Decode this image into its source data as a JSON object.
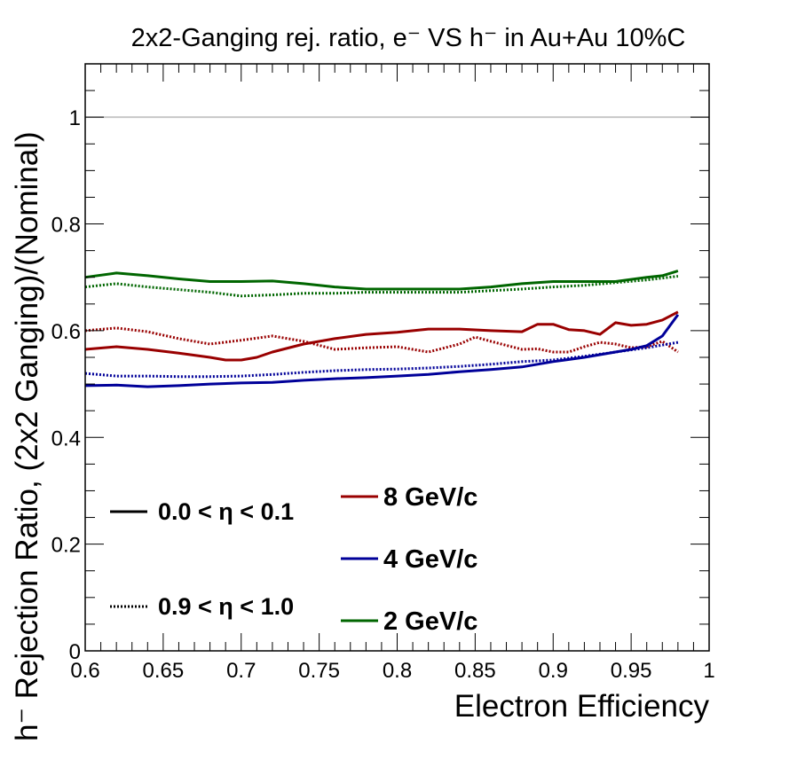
{
  "chart_data": {
    "type": "line",
    "title": "2x2-Ganging rej. ratio, e⁻ VS h⁻ in Au+Au 10%C",
    "xlabel": "Electron Efficiency",
    "ylabel": "h⁻ Rejection Ratio, (2x2 Ganging)/(Nominal)",
    "xlim": [
      0.6,
      1.0
    ],
    "ylim": [
      0,
      1.1
    ],
    "xticks": [
      "0.6",
      "0.65",
      "0.7",
      "0.75",
      "0.8",
      "0.85",
      "0.9",
      "0.95",
      "1"
    ],
    "yticks": [
      "0",
      "0.2",
      "0.4",
      "0.6",
      "0.8",
      "1"
    ],
    "reference_line": {
      "y": 1.0,
      "color": "#c8c8c8"
    },
    "legend_styles": [
      {
        "label": "0.0 < η < 0.1",
        "style": "solid"
      },
      {
        "label": "0.9 < η < 1.0",
        "style": "dotted"
      }
    ],
    "legend_momenta": [
      {
        "label": "8 GeV/c",
        "color": "#990000"
      },
      {
        "label": "4 GeV/c",
        "color": "#000099"
      },
      {
        "label": "2 GeV/c",
        "color": "#006600"
      }
    ],
    "series": [
      {
        "momentum": "8 GeV/c",
        "eta": "0.0 < η < 0.1",
        "color": "#990000",
        "style": "solid",
        "x": [
          0.6,
          0.62,
          0.64,
          0.66,
          0.68,
          0.69,
          0.7,
          0.71,
          0.72,
          0.74,
          0.76,
          0.78,
          0.8,
          0.82,
          0.84,
          0.86,
          0.88,
          0.89,
          0.9,
          0.91,
          0.92,
          0.93,
          0.94,
          0.95,
          0.96,
          0.97,
          0.98
        ],
        "y": [
          0.565,
          0.57,
          0.565,
          0.558,
          0.55,
          0.545,
          0.545,
          0.55,
          0.56,
          0.575,
          0.585,
          0.593,
          0.597,
          0.603,
          0.603,
          0.6,
          0.598,
          0.612,
          0.612,
          0.602,
          0.6,
          0.593,
          0.615,
          0.61,
          0.612,
          0.62,
          0.635
        ]
      },
      {
        "momentum": "8 GeV/c",
        "eta": "0.9 < η < 1.0",
        "color": "#990000",
        "style": "dotted",
        "x": [
          0.6,
          0.62,
          0.64,
          0.66,
          0.68,
          0.7,
          0.72,
          0.74,
          0.76,
          0.78,
          0.8,
          0.82,
          0.84,
          0.85,
          0.86,
          0.88,
          0.89,
          0.9,
          0.91,
          0.92,
          0.93,
          0.94,
          0.95,
          0.96,
          0.97,
          0.98
        ],
        "y": [
          0.6,
          0.605,
          0.598,
          0.585,
          0.575,
          0.582,
          0.59,
          0.58,
          0.565,
          0.568,
          0.57,
          0.56,
          0.575,
          0.588,
          0.58,
          0.565,
          0.566,
          0.56,
          0.56,
          0.57,
          0.578,
          0.575,
          0.568,
          0.57,
          0.58,
          0.56
        ]
      },
      {
        "momentum": "4 GeV/c",
        "eta": "0.0 < η < 0.1",
        "color": "#000099",
        "style": "solid",
        "x": [
          0.6,
          0.62,
          0.64,
          0.66,
          0.68,
          0.7,
          0.72,
          0.74,
          0.76,
          0.78,
          0.8,
          0.82,
          0.84,
          0.86,
          0.88,
          0.9,
          0.92,
          0.94,
          0.95,
          0.96,
          0.97,
          0.98
        ],
        "y": [
          0.497,
          0.498,
          0.495,
          0.497,
          0.5,
          0.502,
          0.503,
          0.507,
          0.51,
          0.512,
          0.515,
          0.518,
          0.523,
          0.527,
          0.532,
          0.542,
          0.55,
          0.56,
          0.565,
          0.572,
          0.59,
          0.63
        ]
      },
      {
        "momentum": "4 GeV/c",
        "eta": "0.9 < η < 1.0",
        "color": "#000099",
        "style": "dotted",
        "x": [
          0.6,
          0.62,
          0.64,
          0.66,
          0.68,
          0.7,
          0.72,
          0.74,
          0.76,
          0.78,
          0.8,
          0.82,
          0.84,
          0.86,
          0.88,
          0.9,
          0.92,
          0.94,
          0.96,
          0.98
        ],
        "y": [
          0.52,
          0.515,
          0.515,
          0.514,
          0.514,
          0.515,
          0.518,
          0.522,
          0.525,
          0.527,
          0.528,
          0.53,
          0.533,
          0.537,
          0.542,
          0.545,
          0.552,
          0.56,
          0.568,
          0.578
        ]
      },
      {
        "momentum": "2 GeV/c",
        "eta": "0.0 < η < 0.1",
        "color": "#006600",
        "style": "solid",
        "x": [
          0.6,
          0.62,
          0.64,
          0.66,
          0.68,
          0.7,
          0.72,
          0.74,
          0.76,
          0.78,
          0.8,
          0.82,
          0.84,
          0.86,
          0.88,
          0.9,
          0.92,
          0.94,
          0.96,
          0.97,
          0.98
        ],
        "y": [
          0.7,
          0.708,
          0.703,
          0.697,
          0.692,
          0.692,
          0.693,
          0.688,
          0.682,
          0.678,
          0.678,
          0.678,
          0.678,
          0.682,
          0.688,
          0.692,
          0.692,
          0.692,
          0.7,
          0.703,
          0.712
        ]
      },
      {
        "momentum": "2 GeV/c",
        "eta": "0.9 < η < 1.0",
        "color": "#006600",
        "style": "dotted",
        "x": [
          0.6,
          0.62,
          0.64,
          0.66,
          0.68,
          0.7,
          0.72,
          0.74,
          0.76,
          0.78,
          0.8,
          0.82,
          0.84,
          0.86,
          0.88,
          0.9,
          0.92,
          0.94,
          0.96,
          0.98
        ],
        "y": [
          0.682,
          0.688,
          0.682,
          0.677,
          0.672,
          0.665,
          0.667,
          0.67,
          0.67,
          0.672,
          0.672,
          0.672,
          0.672,
          0.675,
          0.678,
          0.682,
          0.685,
          0.69,
          0.695,
          0.702
        ]
      }
    ]
  }
}
